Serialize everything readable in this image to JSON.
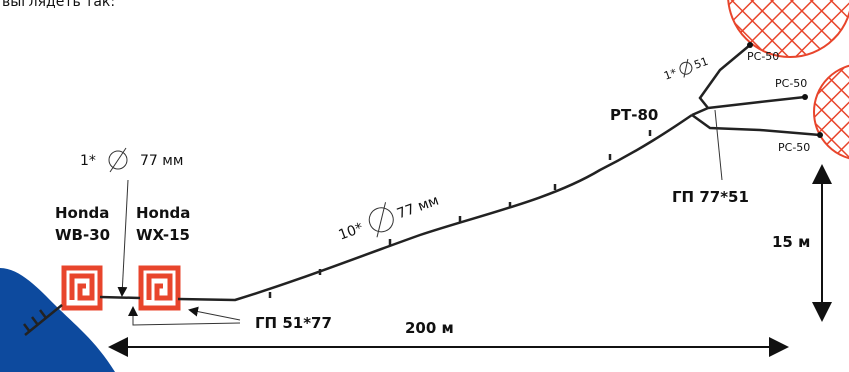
{
  "caption": "выглядеть так:",
  "pumps": [
    {
      "line1": "Honda",
      "line2": "WB-30"
    },
    {
      "line1": "Honda",
      "line2": "WX-15"
    }
  ],
  "suction_hose": {
    "count": "1*",
    "size": "77 мм"
  },
  "main_hose": {
    "count": "10*",
    "size": "77 мм"
  },
  "adapter_1": "ГП 51*77",
  "distance": "200 м",
  "height": "15 м",
  "splitter": "РТ-80",
  "adapter_2": "ГП 77*51",
  "branch_hose": {
    "count": "1*",
    "size": "51"
  },
  "nozzles": [
    "РС-50",
    "РС-50",
    "РС-50"
  ]
}
